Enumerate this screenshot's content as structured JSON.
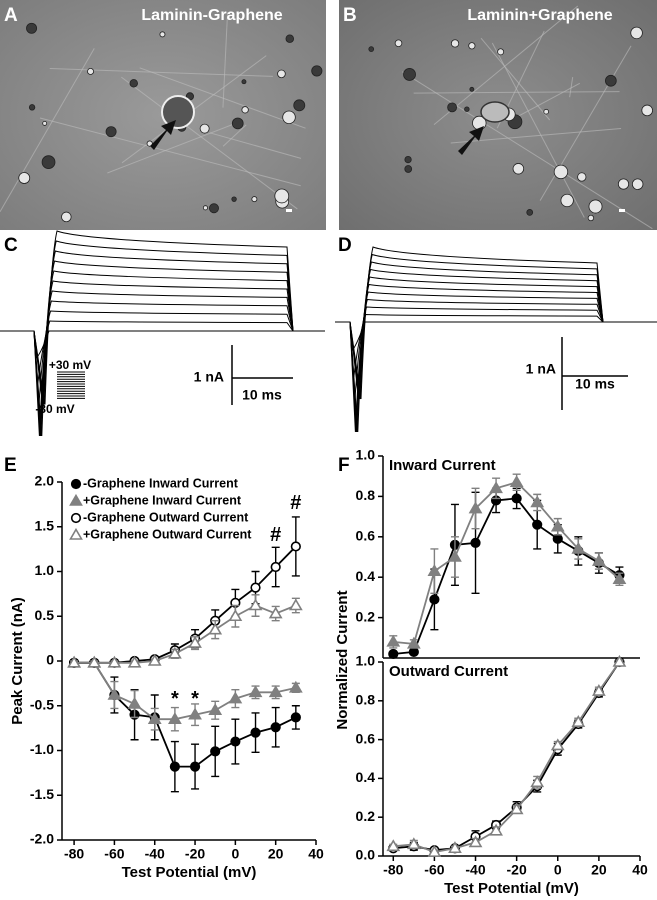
{
  "panels": {
    "A": {
      "label": "A",
      "title": "Laminin-Graphene"
    },
    "B": {
      "label": "B",
      "title": "Laminin+Graphene"
    },
    "C": {
      "label": "C",
      "protocol_top": "+30 mV",
      "protocol_bottom": "-80 mV",
      "scale_y": "1 nA",
      "scale_x": "10 ms"
    },
    "D": {
      "label": "D",
      "scale_y": "1 nA",
      "scale_x": "10 ms"
    }
  },
  "chart_data": [
    {
      "type": "line",
      "panel": "E",
      "xlabel": "Test Potential (mV)",
      "ylabel": "Peak Current (nA)",
      "x": [
        -80,
        -70,
        -60,
        -50,
        -40,
        -30,
        -20,
        -10,
        0,
        10,
        20,
        30
      ],
      "xlim": [
        -86,
        40
      ],
      "xticks": [
        -80,
        -60,
        -40,
        -20,
        0,
        20,
        40
      ],
      "ylim": [
        -2,
        2
      ],
      "yticks": [
        {
          "value": -2,
          "label": "-2.0"
        },
        -1.5,
        {
          "value": -1,
          "label": "-1.0"
        },
        -0.5,
        0,
        0.5,
        {
          "value": 1,
          "label": "1.0"
        },
        1.5,
        {
          "value": 2,
          "label": "2.0"
        }
      ],
      "legend": "upper-left",
      "series": [
        {
          "name": "-Graphene Inward Current",
          "color": "#000000",
          "marker": "circle",
          "marker_fill": "#000000",
          "values": [
            -0.02,
            -0.02,
            -0.38,
            -0.6,
            -0.63,
            -1.18,
            -1.18,
            -1.01,
            -0.9,
            -0.8,
            -0.74,
            -0.63
          ],
          "errors": [
            0.03,
            0.03,
            0.2,
            0.28,
            0.25,
            0.28,
            0.25,
            0.28,
            0.25,
            0.22,
            0.22,
            0.13
          ]
        },
        {
          "name": "+Graphene Inward Current",
          "color": "#808080",
          "marker": "triangle",
          "marker_fill": "#808080",
          "values": [
            -0.02,
            -0.02,
            -0.38,
            -0.48,
            -0.65,
            -0.65,
            -0.6,
            -0.55,
            -0.42,
            -0.35,
            -0.35,
            -0.3
          ],
          "errors": [
            0.03,
            0.03,
            0.15,
            0.15,
            0.12,
            0.13,
            0.12,
            0.1,
            0.1,
            0.07,
            0.07,
            0.05
          ]
        },
        {
          "name": "-Graphene Outward Current",
          "color": "#000000",
          "marker": "circle",
          "marker_fill": "#ffffff",
          "values": [
            -0.02,
            -0.02,
            -0.02,
            0,
            0.02,
            0.12,
            0.25,
            0.45,
            0.65,
            0.82,
            1.05,
            1.28
          ],
          "errors": [
            0.02,
            0.02,
            0.02,
            0.02,
            0.03,
            0.07,
            0.1,
            0.12,
            0.15,
            0.18,
            0.22,
            0.33
          ]
        },
        {
          "name": "+Graphene Outward Current",
          "color": "#808080",
          "marker": "triangle",
          "marker_fill": "#ffffff",
          "values": [
            -0.02,
            -0.02,
            -0.02,
            -0.02,
            0,
            0.08,
            0.2,
            0.35,
            0.5,
            0.62,
            0.53,
            0.62
          ],
          "errors": [
            0.02,
            0.02,
            0.02,
            0.02,
            0.02,
            0.05,
            0.07,
            0.1,
            0.12,
            0.12,
            0.08,
            0.08
          ]
        }
      ],
      "annotations": [
        {
          "text": "*",
          "x": -30,
          "y": -0.43
        },
        {
          "text": "*",
          "x": -20,
          "y": -0.43
        },
        {
          "text": "#",
          "x": 20,
          "y": 1.4
        },
        {
          "text": "#",
          "x": 30,
          "y": 1.76
        }
      ]
    },
    {
      "type": "line",
      "panel": "F",
      "title": "Inward Current",
      "ylabel": "Normalized Current",
      "x": [
        -80,
        -70,
        -60,
        -50,
        -40,
        -30,
        -20,
        -10,
        0,
        10,
        20,
        30
      ],
      "xlim": [
        -85,
        40
      ],
      "ylim": [
        0,
        1
      ],
      "yticks": [
        0.2,
        0.4,
        0.6,
        0.8,
        {
          "value": 1,
          "label": "1.0"
        }
      ],
      "series": [
        {
          "color": "#000000",
          "marker": "circle",
          "marker_fill": "#000000",
          "values": [
            0.02,
            0.03,
            0.29,
            0.56,
            0.57,
            0.78,
            0.79,
            0.66,
            0.59,
            0.53,
            0.47,
            0.41
          ],
          "errors": [
            0.01,
            0.01,
            0.15,
            0.2,
            0.25,
            0.06,
            0.05,
            0.12,
            0.07,
            0.07,
            0.05,
            0.04
          ]
        },
        {
          "color": "#808080",
          "marker": "triangle",
          "marker_fill": "#808080",
          "values": [
            0.08,
            0.07,
            0.43,
            0.5,
            0.74,
            0.84,
            0.87,
            0.77,
            0.65,
            0.54,
            0.48,
            0.39
          ],
          "errors": [
            0.03,
            0.02,
            0.11,
            0.1,
            0.1,
            0.05,
            0.04,
            0.04,
            0.04,
            0.05,
            0.04,
            0.03
          ]
        }
      ]
    },
    {
      "type": "line",
      "title": "Outward Current",
      "xlabel": "Test Potential (mV)",
      "x": [
        -80,
        -70,
        -60,
        -50,
        -40,
        -30,
        -20,
        -10,
        0,
        10,
        20,
        30
      ],
      "xlim": [
        -85,
        40
      ],
      "xticks": [
        -80,
        -60,
        -40,
        -20,
        0,
        20,
        40
      ],
      "ylim": [
        0,
        1
      ],
      "yticks": [
        {
          "value": 0,
          "label": "0.0"
        },
        0.2,
        0.4,
        0.6,
        0.8,
        {
          "value": 1,
          "label": "1.0"
        }
      ],
      "series": [
        {
          "color": "#000000",
          "marker": "circle",
          "marker_fill": "#ffffff",
          "values": [
            0.04,
            0.05,
            0.03,
            0.04,
            0.1,
            0.16,
            0.25,
            0.36,
            0.55,
            0.68,
            0.84,
            1.0
          ],
          "errors": [
            0.01,
            0.02,
            0.01,
            0.01,
            0.03,
            0.02,
            0.03,
            0.03,
            0.03,
            0.02,
            0.02,
            0.01
          ]
        },
        {
          "color": "#808080",
          "marker": "triangle",
          "marker_fill": "#ffffff",
          "values": [
            0.05,
            0.06,
            0.02,
            0.04,
            0.07,
            0.13,
            0.24,
            0.38,
            0.57,
            0.69,
            0.85,
            1.0
          ],
          "errors": [
            0.01,
            0.02,
            0.01,
            0.01,
            0.02,
            0.02,
            0.02,
            0.03,
            0.02,
            0.02,
            0.02,
            0.01
          ]
        }
      ]
    }
  ]
}
